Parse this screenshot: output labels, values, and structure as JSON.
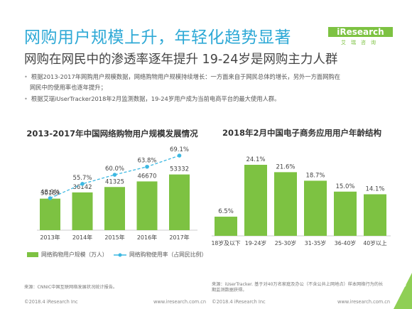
{
  "header": {
    "title": "网购用户规模上升，年轻化趋势显著",
    "subtitle": "网购在网民中的渗透率逐年提升 19-24岁是网购主力人群",
    "logo": "iResearch",
    "logo_cn": "艾瑞咨询"
  },
  "bullets": [
    "根据2013-2017年网购用户规模数据，网络购物用户规模持续增长：一方面来自于网民总体的增长，另外一方面网购在",
    "网民中的使用率也逐年提升；",
    "根据艾瑞iUserTracker2018年2月监测数据，19-24岁用户成为当前电商平台的最大使用人群。"
  ],
  "colors": {
    "bar_green": "#7dc242",
    "line_blue": "#3cb8e2",
    "title_blue": "#2ea9d6"
  },
  "chart_data": [
    {
      "type": "bar",
      "title": "2013-2017年中国网络购物用户规模发展情况",
      "categories": [
        "2013年",
        "2014年",
        "2015年",
        "2016年",
        "2017年"
      ],
      "series": [
        {
          "name": "网络购物用户规模（万人）",
          "values": [
            30189,
            36142,
            41325,
            46670,
            53332
          ],
          "kind": "bar",
          "color": "#7dc242"
        },
        {
          "name": "网络购物使用率（占网民比例）",
          "values": [
            48.9,
            55.7,
            60.0,
            63.8,
            69.1
          ],
          "labels": [
            "48.9%",
            "55.7%",
            "60.0%",
            "63.8%",
            "69.1%"
          ],
          "kind": "line",
          "color": "#3cb8e2"
        }
      ],
      "legend": "bottom"
    },
    {
      "type": "bar",
      "title": "2018年2月中国电子商务应用用户年龄结构",
      "categories": [
        "18岁及以下",
        "19-24岁",
        "25-30岁",
        "31-35岁",
        "36-40岁",
        "40岁以上"
      ],
      "values": [
        6.5,
        24.1,
        21.6,
        18.7,
        15.0,
        14.1
      ],
      "labels": [
        "6.5%",
        "24.1%",
        "21.6%",
        "18.7%",
        "15.0%",
        "14.1%"
      ],
      "color": "#7dc242"
    }
  ],
  "sources": {
    "left": "来源：CNNIC中国互联网络发展状况统计报告。",
    "right_line1": "来源：iUserTracker. 基于对40万名家庭及办公（不含公共上网地点）样本网络行为的长",
    "right_line2": "期监测数据获得。"
  },
  "footer": {
    "left_copyright": "©2018.4 iResearch Inc",
    "left_url": "www.iresearch.com.cn",
    "right_copyright": "©2018.4 iResearch Inc",
    "right_url": "www.iresearch.com.cn",
    "page": "6"
  }
}
